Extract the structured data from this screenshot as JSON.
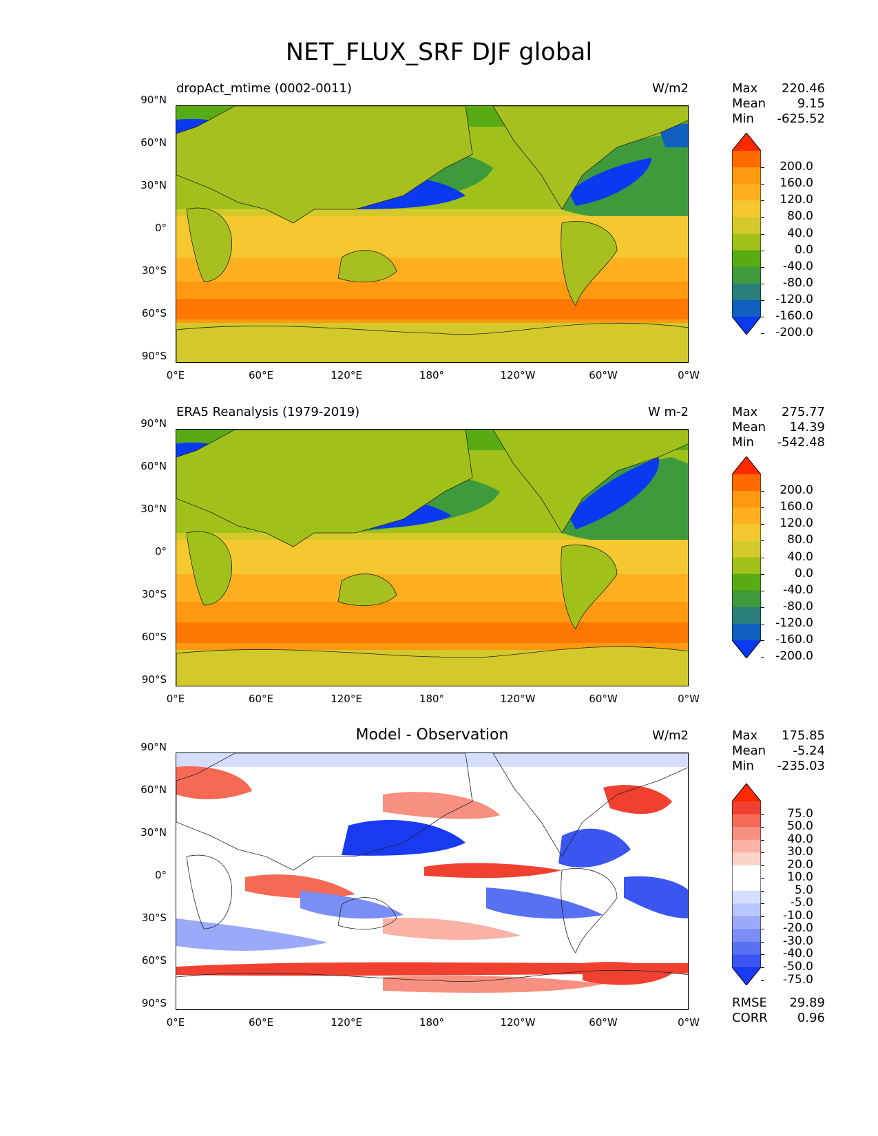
{
  "figure": {
    "title": "NET_FLUX_SRF DJF global"
  },
  "axes": {
    "lat_labels": [
      "90°N",
      "60°N",
      "30°N",
      "0°",
      "30°S",
      "60°S",
      "90°S"
    ],
    "lon_labels": [
      "0°E",
      "60°E",
      "120°E",
      "180°",
      "120°W",
      "60°W",
      "0°W"
    ]
  },
  "panels": [
    {
      "title": "dropAct_mtime (0002-0011)",
      "units": "W/m2",
      "stats": {
        "max_label": "Max",
        "max": "220.46",
        "mean_label": "Mean",
        "mean": "9.15",
        "min_label": "Min",
        "min": "-625.52"
      },
      "colorbar_labels": [
        "200.0",
        "160.0",
        "120.0",
        "80.0",
        "40.0",
        "0.0",
        "-40.0",
        "-80.0",
        "-120.0",
        "-160.0",
        "-200.0"
      ]
    },
    {
      "title": "ERA5 Reanalysis (1979-2019)",
      "units": "W m-2",
      "stats": {
        "max_label": "Max",
        "max": "275.77",
        "mean_label": "Mean",
        "mean": "14.39",
        "min_label": "Min",
        "min": "-542.48"
      },
      "colorbar_labels": [
        "200.0",
        "160.0",
        "120.0",
        "80.0",
        "40.0",
        "0.0",
        "-40.0",
        "-80.0",
        "-120.0",
        "-160.0",
        "-200.0"
      ]
    },
    {
      "title": "Model - Observation",
      "units": "W/m2",
      "stats": {
        "max_label": "Max",
        "max": "175.85",
        "mean_label": "Mean",
        "mean": "-5.24",
        "min_label": "Min",
        "min": "-235.03"
      },
      "colorbar_labels": [
        "75.0",
        "50.0",
        "40.0",
        "30.0",
        "20.0",
        "10.0",
        "5.0",
        "-5.0",
        "-10.0",
        "-20.0",
        "-30.0",
        "-40.0",
        "-50.0",
        "-75.0"
      ],
      "error_stats": {
        "rmse_label": "RMSE",
        "rmse": "29.89",
        "corr_label": "CORR",
        "corr": "0.96"
      }
    }
  ],
  "colors": {
    "flux_scale": [
      "#ff2a00",
      "#ff6a00",
      "#ff9a10",
      "#ffb020",
      "#f5c830",
      "#d4c92a",
      "#9fc11a",
      "#58ab14",
      "#3f9a3c",
      "#2b7f7a",
      "#1060c0",
      "#0a3af0"
    ],
    "diff_scale": [
      "#ff2a00",
      "#f04030",
      "#f56a55",
      "#f79080",
      "#f9b2a5",
      "#fbd2ca",
      "#ffffff",
      "#ffffff",
      "#d5deff",
      "#b8c6ff",
      "#9aaaf8",
      "#7a8ef5",
      "#5870f2",
      "#3a55f0",
      "#1a3af2"
    ],
    "land": "#a7c020",
    "ocean_tropic": "#f5c830",
    "coastline": "#222222"
  }
}
